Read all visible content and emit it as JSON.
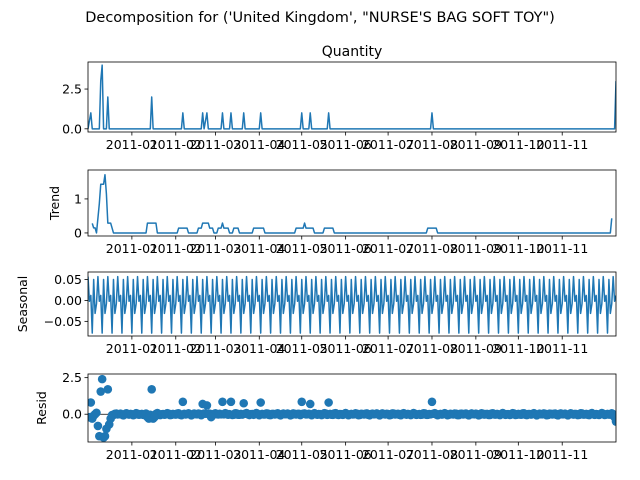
{
  "figure": {
    "suptitle": "Decomposition for ('United Kingdom', \"NURSE'S BAG SOFT TOY\")"
  },
  "chart_data": {
    "type": "line",
    "x_date_range": [
      "2010-12-01",
      "2011-12-09"
    ],
    "x_tick_labels": [
      "2011-01",
      "2011-02",
      "2011-03",
      "2011-04",
      "2011-05",
      "2011-06",
      "2011-07",
      "2011-08",
      "2011-09",
      "2011-10",
      "2011-11"
    ],
    "line_color": "#1f77b4",
    "panels": [
      {
        "name": "observed",
        "title": "Quantity",
        "ylabel": "",
        "ylim": [
          -0.2,
          4.2
        ],
        "yticks": [
          0.0,
          2.5
        ],
        "ytick_labels": [
          "0.0",
          "2.5"
        ],
        "style": "line",
        "points": [
          [
            "2010-12-01",
            0
          ],
          [
            "2010-12-03",
            1
          ],
          [
            "2010-12-04",
            0
          ],
          [
            "2010-12-09",
            0
          ],
          [
            "2010-12-10",
            3
          ],
          [
            "2010-12-11",
            4
          ],
          [
            "2010-12-12",
            0
          ],
          [
            "2010-12-14",
            0
          ],
          [
            "2010-12-15",
            2
          ],
          [
            "2010-12-16",
            0
          ],
          [
            "2011-01-14",
            0
          ],
          [
            "2011-01-15",
            2
          ],
          [
            "2011-01-16",
            0
          ],
          [
            "2011-02-05",
            0
          ],
          [
            "2011-02-06",
            1
          ],
          [
            "2011-02-07",
            0
          ],
          [
            "2011-02-19",
            0
          ],
          [
            "2011-02-20",
            1
          ],
          [
            "2011-02-21",
            0
          ],
          [
            "2011-02-23",
            1
          ],
          [
            "2011-02-24",
            0
          ],
          [
            "2011-03-05",
            0
          ],
          [
            "2011-03-06",
            1
          ],
          [
            "2011-03-07",
            0
          ],
          [
            "2011-03-11",
            0
          ],
          [
            "2011-03-12",
            1
          ],
          [
            "2011-03-13",
            0
          ],
          [
            "2011-03-20",
            0
          ],
          [
            "2011-03-21",
            1
          ],
          [
            "2011-03-22",
            0
          ],
          [
            "2011-04-01",
            0
          ],
          [
            "2011-04-02",
            1
          ],
          [
            "2011-04-03",
            0
          ],
          [
            "2011-04-30",
            0
          ],
          [
            "2011-05-01",
            1
          ],
          [
            "2011-05-02",
            0
          ],
          [
            "2011-05-06",
            0
          ],
          [
            "2011-05-07",
            1
          ],
          [
            "2011-05-08",
            0
          ],
          [
            "2011-05-19",
            0
          ],
          [
            "2011-05-20",
            1
          ],
          [
            "2011-05-21",
            0
          ],
          [
            "2011-07-31",
            0
          ],
          [
            "2011-08-01",
            1
          ],
          [
            "2011-08-02",
            0
          ],
          [
            "2011-12-08",
            0
          ],
          [
            "2011-12-09",
            3
          ]
        ]
      },
      {
        "name": "trend",
        "title": "",
        "ylabel": "Trend",
        "ylim": [
          -0.09,
          1.85
        ],
        "yticks": [
          0,
          1
        ],
        "ytick_labels": [
          "0",
          "1"
        ],
        "style": "line",
        "points": [
          [
            "2010-12-04",
            0.28
          ],
          [
            "2010-12-05",
            0.15
          ],
          [
            "2010-12-06",
            0.15
          ],
          [
            "2010-12-07",
            0.0
          ],
          [
            "2010-12-09",
            0.86
          ],
          [
            "2010-12-10",
            1.43
          ],
          [
            "2010-12-12",
            1.43
          ],
          [
            "2010-12-13",
            1.71
          ],
          [
            "2010-12-14",
            1.15
          ],
          [
            "2010-12-15",
            0.29
          ],
          [
            "2010-12-17",
            0.29
          ],
          [
            "2010-12-19",
            0.0
          ],
          [
            "2011-01-11",
            0.0
          ],
          [
            "2011-01-12",
            0.29
          ],
          [
            "2011-01-18",
            0.29
          ],
          [
            "2011-01-19",
            0.0
          ],
          [
            "2011-02-02",
            0.0
          ],
          [
            "2011-02-03",
            0.14
          ],
          [
            "2011-02-09",
            0.14
          ],
          [
            "2011-02-10",
            0.0
          ],
          [
            "2011-02-16",
            0.0
          ],
          [
            "2011-02-17",
            0.14
          ],
          [
            "2011-02-19",
            0.14
          ],
          [
            "2011-02-20",
            0.29
          ],
          [
            "2011-02-24",
            0.29
          ],
          [
            "2011-02-25",
            0.14
          ],
          [
            "2011-02-27",
            0.14
          ],
          [
            "2011-02-28",
            0.0
          ],
          [
            "2011-03-02",
            0.0
          ],
          [
            "2011-03-03",
            0.14
          ],
          [
            "2011-03-05",
            0.14
          ],
          [
            "2011-03-06",
            0.29
          ],
          [
            "2011-03-07",
            0.14
          ],
          [
            "2011-03-10",
            0.14
          ],
          [
            "2011-03-11",
            0.0
          ],
          [
            "2011-03-13",
            0.0
          ],
          [
            "2011-03-14",
            0.14
          ],
          [
            "2011-03-17",
            0.14
          ],
          [
            "2011-03-18",
            0.0
          ],
          [
            "2011-03-27",
            0.0
          ],
          [
            "2011-03-28",
            0.14
          ],
          [
            "2011-04-04",
            0.14
          ],
          [
            "2011-04-05",
            0.0
          ],
          [
            "2011-04-26",
            0.0
          ],
          [
            "2011-04-27",
            0.14
          ],
          [
            "2011-05-02",
            0.14
          ],
          [
            "2011-05-03",
            0.29
          ],
          [
            "2011-05-04",
            0.14
          ],
          [
            "2011-05-09",
            0.14
          ],
          [
            "2011-05-10",
            0.0
          ],
          [
            "2011-05-16",
            0.0
          ],
          [
            "2011-05-17",
            0.14
          ],
          [
            "2011-05-23",
            0.14
          ],
          [
            "2011-05-24",
            0.0
          ],
          [
            "2011-07-28",
            0.0
          ],
          [
            "2011-07-29",
            0.14
          ],
          [
            "2011-08-04",
            0.14
          ],
          [
            "2011-08-05",
            0.0
          ],
          [
            "2011-12-05",
            0.0
          ],
          [
            "2011-12-06",
            0.43
          ]
        ]
      },
      {
        "name": "seasonal",
        "title": "",
        "ylabel": "Seasonal",
        "ylim": [
          -0.085,
          0.068
        ],
        "yticks": [
          -0.05,
          0.0,
          0.05
        ],
        "ytick_labels": [
          "−0.05",
          "0.00",
          "0.05"
        ],
        "style": "periodic-line",
        "period_days": 7,
        "weekly_pattern": [
          0.057,
          -0.002,
          0.012,
          -0.078,
          0.05,
          -0.031,
          -0.008
        ]
      },
      {
        "name": "resid",
        "title": "",
        "ylabel": "Resid",
        "ylim": [
          -1.9,
          2.75
        ],
        "yticks": [
          0.0,
          2.5
        ],
        "ytick_labels": [
          "0.0",
          "2.5"
        ],
        "style": "scatter",
        "zero_line": true,
        "baseline_noise": 0.08,
        "baseline_range": [
          "2010-12-01",
          "2011-12-09"
        ],
        "points": [
          [
            "2010-12-01",
            -0.2
          ],
          [
            "2010-12-02",
            -0.2
          ],
          [
            "2010-12-03",
            0.8
          ],
          [
            "2010-12-04",
            -0.3
          ],
          [
            "2010-12-05",
            -0.1
          ],
          [
            "2010-12-06",
            0.0
          ],
          [
            "2010-12-07",
            0.1
          ],
          [
            "2010-12-08",
            -0.8
          ],
          [
            "2010-12-09",
            -1.5
          ],
          [
            "2010-12-10",
            1.55
          ],
          [
            "2010-12-11",
            2.4
          ],
          [
            "2010-12-12",
            -1.6
          ],
          [
            "2010-12-13",
            -1.5
          ],
          [
            "2010-12-14",
            -1.0
          ],
          [
            "2010-12-15",
            1.7
          ],
          [
            "2010-12-16",
            -0.7
          ],
          [
            "2010-12-17",
            -0.3
          ],
          [
            "2011-01-12",
            -0.2
          ],
          [
            "2011-01-13",
            -0.3
          ],
          [
            "2011-01-15",
            1.7
          ],
          [
            "2011-01-16",
            -0.3
          ],
          [
            "2011-01-17",
            -0.2
          ],
          [
            "2011-02-06",
            0.85
          ],
          [
            "2011-02-20",
            0.7
          ],
          [
            "2011-02-23",
            0.6
          ],
          [
            "2011-02-26",
            -0.2
          ],
          [
            "2011-03-06",
            0.85
          ],
          [
            "2011-03-12",
            0.85
          ],
          [
            "2011-03-21",
            0.75
          ],
          [
            "2011-04-02",
            0.8
          ],
          [
            "2011-05-01",
            0.85
          ],
          [
            "2011-05-07",
            0.7
          ],
          [
            "2011-05-20",
            0.8
          ],
          [
            "2011-08-01",
            0.85
          ],
          [
            "2011-12-07",
            0.0
          ],
          [
            "2011-12-08",
            -0.2
          ],
          [
            "2011-12-09",
            -0.5
          ]
        ]
      }
    ]
  }
}
